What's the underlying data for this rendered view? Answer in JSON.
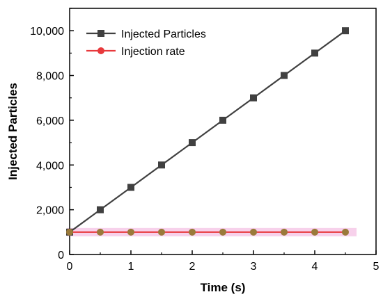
{
  "chart_data": {
    "type": "line",
    "xlabel": "Time (s)",
    "ylabel": "Injected Particles",
    "xlim": [
      0,
      5
    ],
    "ylim": [
      0,
      11000
    ],
    "x_ticks": [
      0,
      1,
      2,
      3,
      4,
      5
    ],
    "x_tick_labels": [
      "0",
      "1",
      "2",
      "3",
      "4",
      "5"
    ],
    "y_ticks": [
      0,
      2000,
      4000,
      6000,
      8000,
      10000
    ],
    "y_tick_labels": [
      "0",
      "2,000",
      "4,000",
      "6,000",
      "8,000",
      "10,000"
    ],
    "grid": false,
    "legend_position": "top-left",
    "series": [
      {
        "name": "Injected Particles",
        "marker": "square",
        "color": "#404040",
        "x": [
          0,
          0.5,
          1,
          1.5,
          2,
          2.5,
          3,
          3.5,
          4,
          4.5
        ],
        "y": [
          1000,
          2000,
          3000,
          4000,
          5000,
          6000,
          7000,
          8000,
          9000,
          10000
        ]
      },
      {
        "name": "Injection rate",
        "marker": "circle",
        "color": "#e8393c",
        "marker_color": "#9a7a3a",
        "band_color": "#f5c6e6",
        "x": [
          0,
          0.5,
          1,
          1.5,
          2,
          2.5,
          3,
          3.5,
          4,
          4.5
        ],
        "y": [
          1000,
          1000,
          1000,
          1000,
          1000,
          1000,
          1000,
          1000,
          1000,
          1000
        ]
      }
    ]
  }
}
